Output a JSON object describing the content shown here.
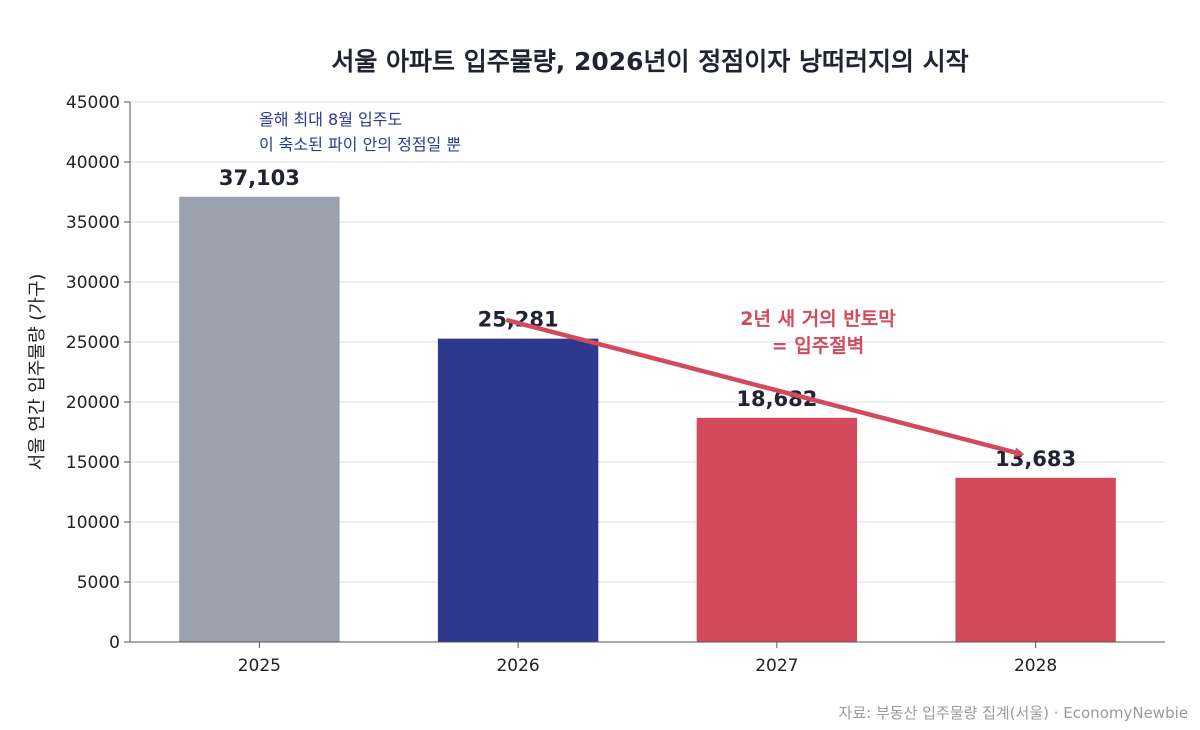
{
  "chart_data": {
    "type": "bar",
    "title": "서울 아파트 입주물량, 2026년이 정점이자 낭떠러지의 시작",
    "ylabel": "서울 연간 입주물량 (가구)",
    "xlabel": "",
    "categories": [
      "2025",
      "2026",
      "2027",
      "2028"
    ],
    "values": [
      37103,
      25281,
      18682,
      13683
    ],
    "value_labels": [
      "37,103",
      "25,281",
      "18,682",
      "13,683"
    ],
    "ylim": [
      0,
      45000
    ],
    "yticks": [
      "0",
      "5000",
      "10000",
      "15000",
      "20000",
      "25000",
      "30000",
      "35000",
      "40000",
      "45000"
    ],
    "grid": true,
    "trend": {
      "from_category": "2026",
      "to_category": "2028",
      "from_value": 26800,
      "to_value": 15700
    },
    "annotations": {
      "note": [
        "올해 최대 8월 입주도",
        "이 축소된 파이 안의 정점일 뿐"
      ],
      "callout": [
        "2년 새 거의 반토막",
        "= 입주절벽"
      ]
    },
    "source": "자료: 부동산 입주물량 집계(서울) · EconomyNewbie"
  },
  "colors": {
    "bars": [
      "#9aa1ad",
      "#2e388c",
      "#d24a5c",
      "#d24a5c"
    ],
    "trend": "#d24a5c",
    "grid": "#e6e8ef",
    "axis": "#555555",
    "note": "#2e3a8c",
    "callout": "#d24a5c"
  }
}
